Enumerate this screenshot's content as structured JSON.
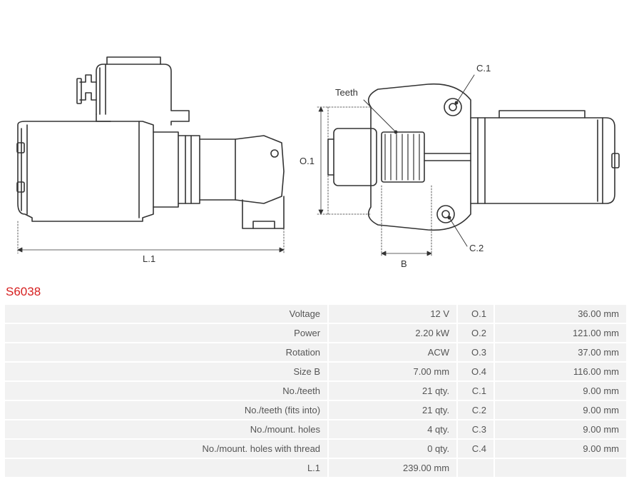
{
  "part_number": "S6038",
  "diagram": {
    "labels": {
      "L1": "L.1",
      "O1": "O.1",
      "B": "B",
      "Teeth": "Teeth",
      "C1": "C.1",
      "C2": "C.2"
    },
    "stroke_color": "#333333",
    "stroke_width": 1.5,
    "dim_stroke_width": 0.8
  },
  "specs_left": [
    {
      "label": "Voltage",
      "value": "12 V"
    },
    {
      "label": "Power",
      "value": "2.20 kW"
    },
    {
      "label": "Rotation",
      "value": "ACW"
    },
    {
      "label": "Size B",
      "value": "7.00 mm"
    },
    {
      "label": "No./teeth",
      "value": "21 qty."
    },
    {
      "label": "No./teeth (fits into)",
      "value": "21 qty."
    },
    {
      "label": "No./mount. holes",
      "value": "4 qty."
    },
    {
      "label": "No./mount. holes with thread",
      "value": "0 qty."
    },
    {
      "label": "L.1",
      "value": "239.00 mm"
    }
  ],
  "specs_right": [
    {
      "label": "O.1",
      "value": "36.00 mm"
    },
    {
      "label": "O.2",
      "value": "121.00 mm"
    },
    {
      "label": "O.3",
      "value": "37.00 mm"
    },
    {
      "label": "O.4",
      "value": "116.00 mm"
    },
    {
      "label": "C.1",
      "value": "9.00 mm"
    },
    {
      "label": "C.2",
      "value": "9.00 mm"
    },
    {
      "label": "C.3",
      "value": "9.00 mm"
    },
    {
      "label": "C.4",
      "value": "9.00 mm"
    },
    {
      "label": "",
      "value": ""
    }
  ]
}
